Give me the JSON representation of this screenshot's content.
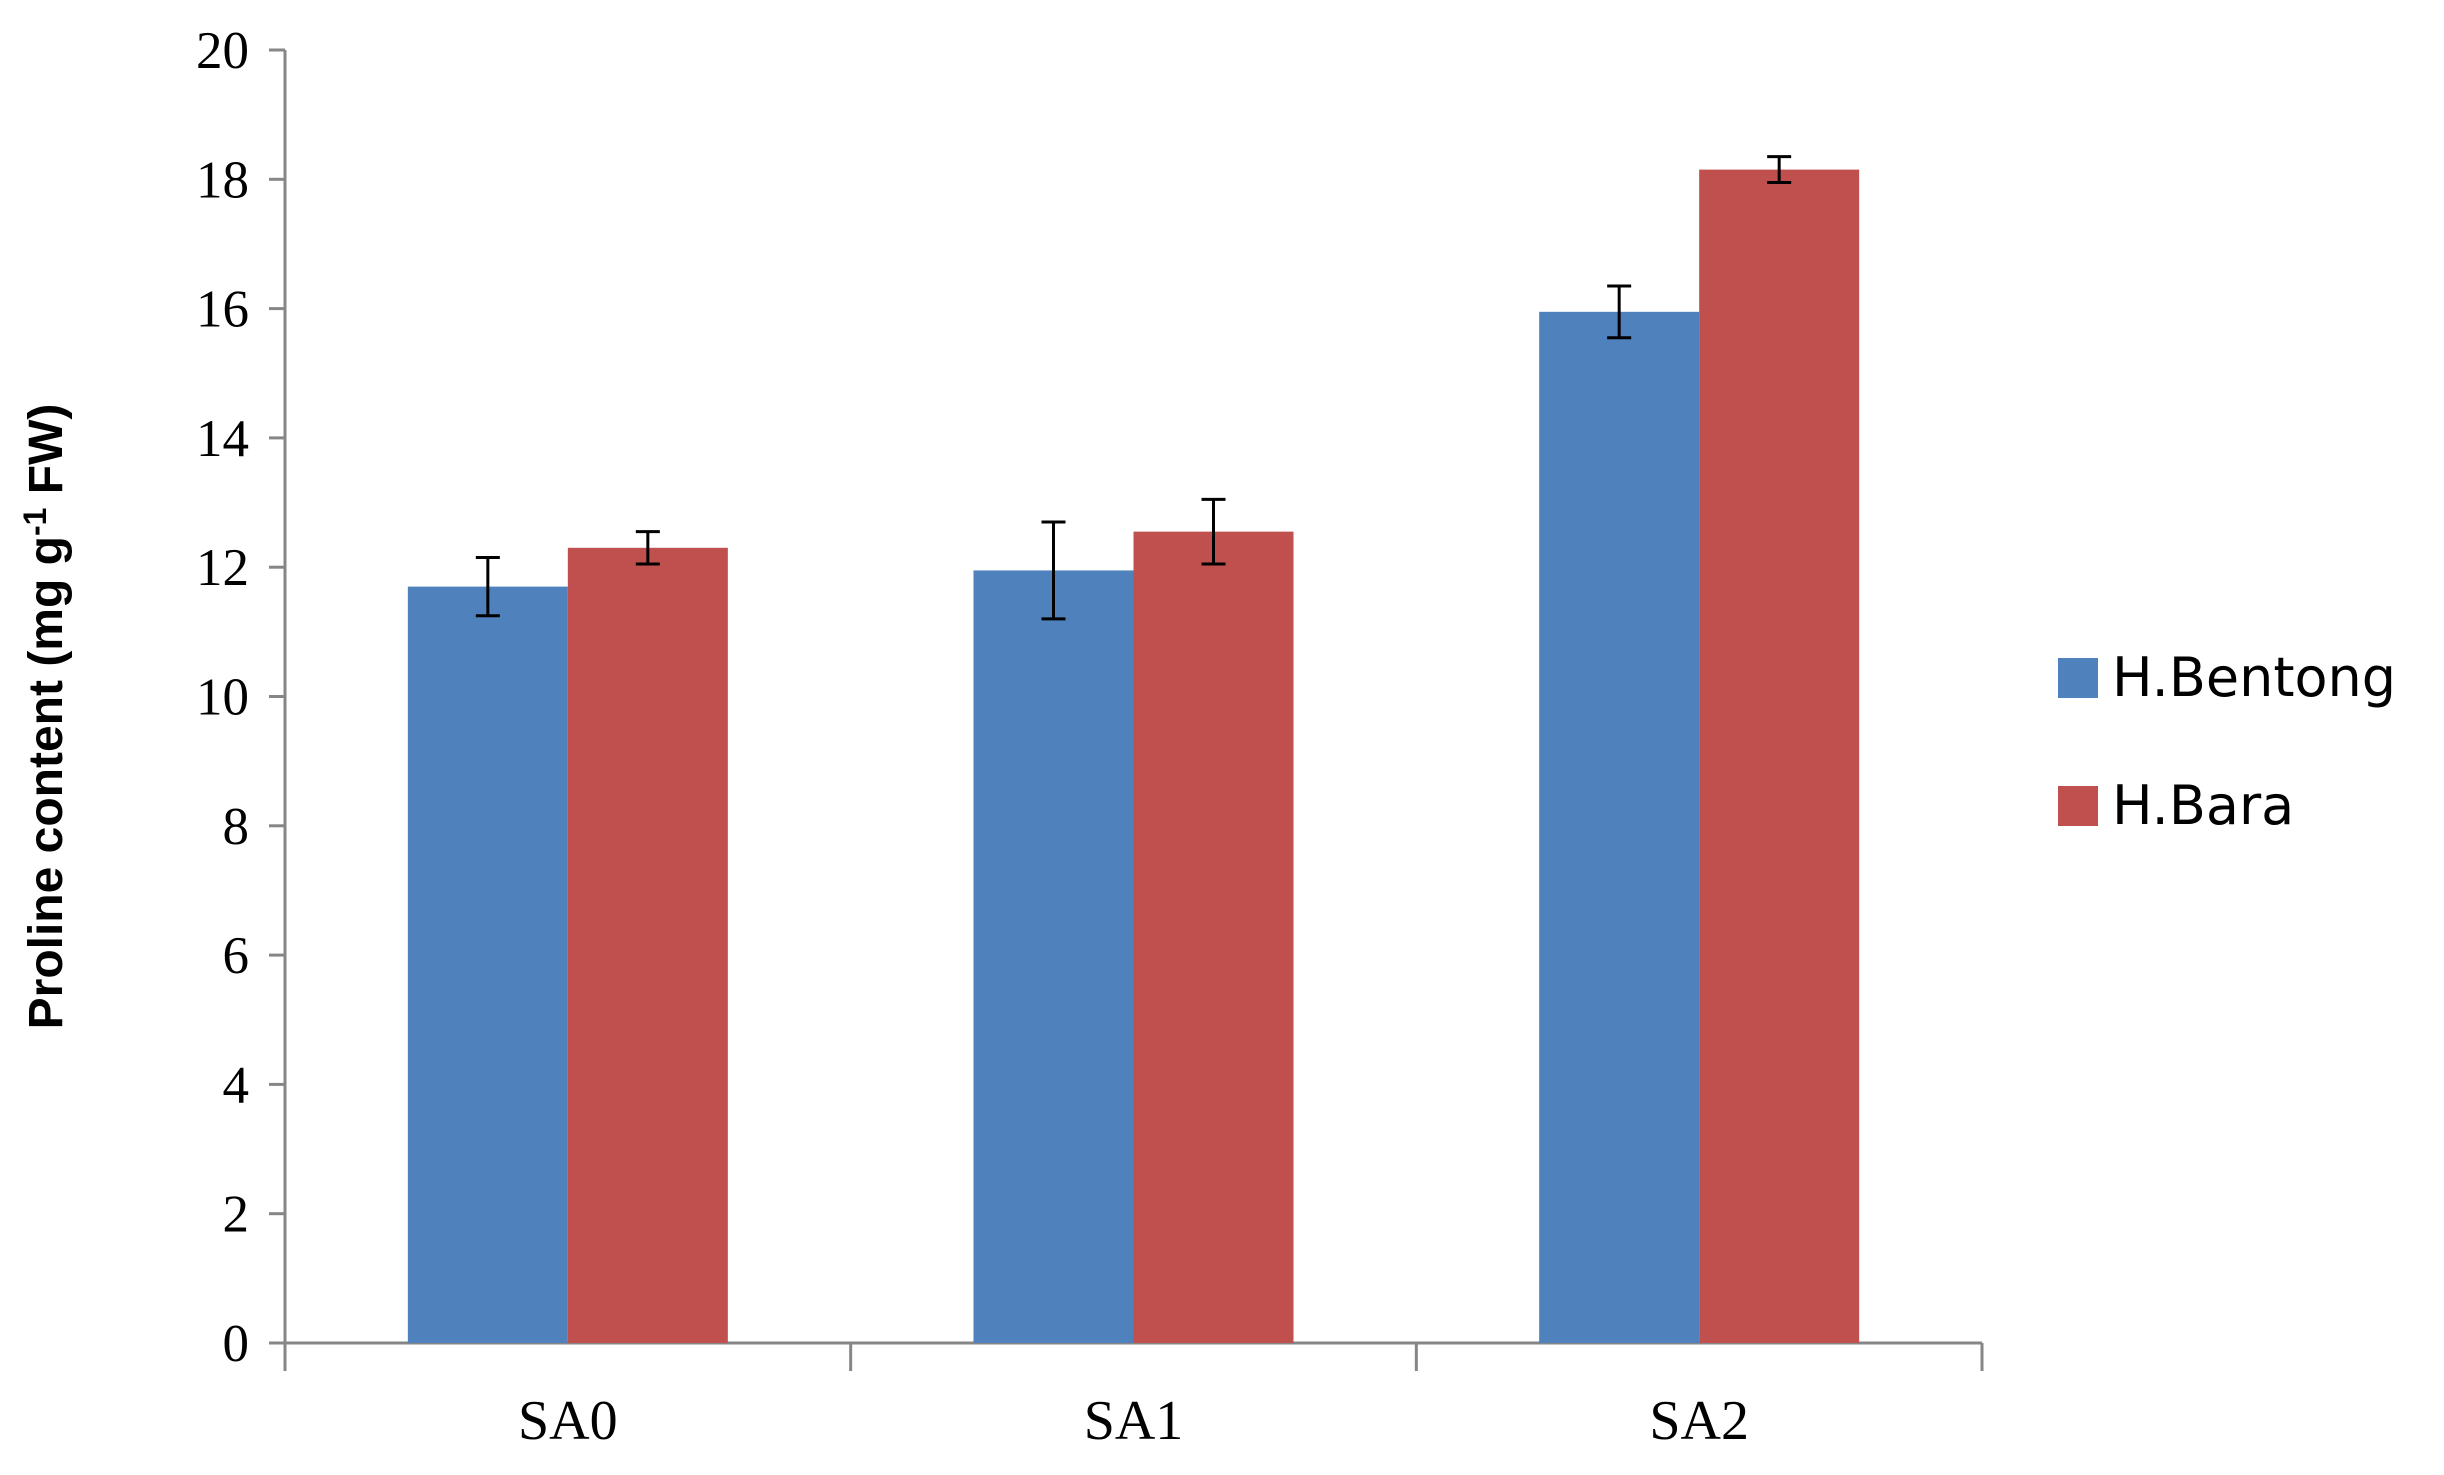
{
  "chart_data": {
    "type": "bar",
    "categories": [
      "SA0",
      "SA1",
      "SA2"
    ],
    "series": [
      {
        "name": "H.Bentong",
        "color": "#4f81bd",
        "values": [
          11.7,
          11.95,
          15.95
        ],
        "errors": [
          0.45,
          0.75,
          0.4
        ]
      },
      {
        "name": "H.Bara",
        "color": "#c0504d",
        "values": [
          12.3,
          12.55,
          18.15
        ],
        "errors": [
          0.25,
          0.5,
          0.2
        ]
      }
    ],
    "ylabel": {
      "main": "Proline content (mg g",
      "superscript": "-1",
      "suffix": " FW)"
    },
    "xlabel": "",
    "ylim": [
      0,
      20
    ],
    "yticks": [
      "0",
      "2",
      "4",
      "6",
      "8",
      "10",
      "12",
      "14",
      "16",
      "18",
      "20"
    ],
    "grid": false,
    "legend_position": "right"
  }
}
